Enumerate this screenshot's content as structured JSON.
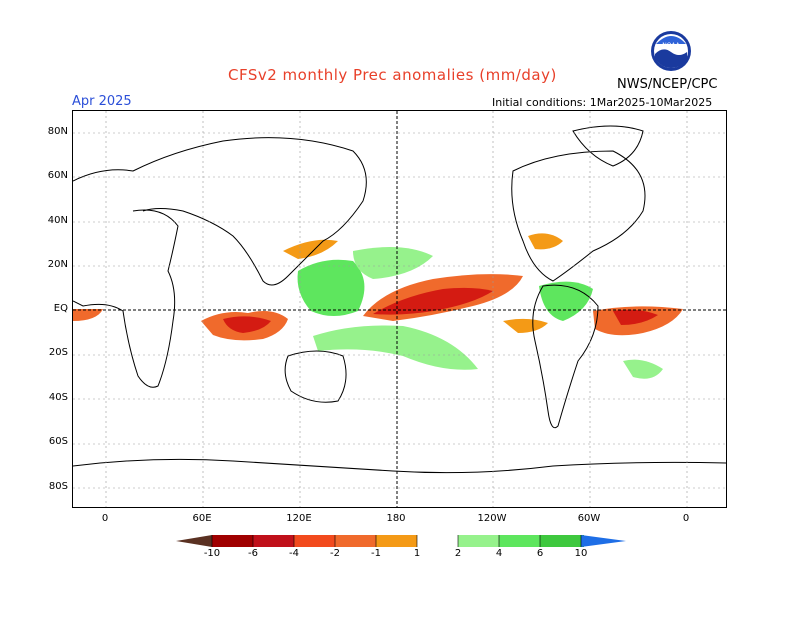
{
  "header": {
    "title": "CFSv2 monthly Prec anomalies (mm/day)",
    "month": "Apr 2025",
    "initial_conditions": "Initial conditions: 1Mar2025-10Mar2025",
    "agency": "NWS/NCEP/CPC",
    "logo_text": "NOAA"
  },
  "map": {
    "lat_labels": [
      "80N",
      "60N",
      "40N",
      "20N",
      "EQ",
      "20S",
      "40S",
      "60S",
      "80S"
    ],
    "lon_labels": [
      "0",
      "60E",
      "120E",
      "180",
      "120W",
      "60W",
      "0"
    ],
    "colors": {
      "dry_strong": "#5a3122",
      "dry_1": "#a00000",
      "dry_2": "#d41b12",
      "dry_3": "#f24a1d",
      "dry_4": "#f06a2c",
      "dry_5": "#f49a16",
      "wet_1": "#96f28c",
      "wet_2": "#5ee65e",
      "wet_3": "#3ec83e",
      "wet_4": "#22a622",
      "wet_5": "#138a13",
      "wet_strong": "#1e6ee6"
    }
  },
  "colorbar": {
    "labels": [
      "-10",
      "-6",
      "-4",
      "-2",
      "-1",
      "1",
      "2",
      "4",
      "6",
      "10"
    ]
  }
}
